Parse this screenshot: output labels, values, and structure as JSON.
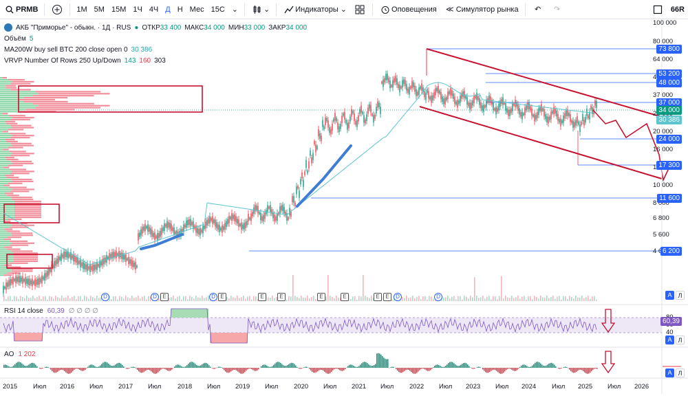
{
  "toolbar": {
    "symbol": "PRMB",
    "intervals": [
      "1М",
      "5М",
      "15М",
      "1Ч",
      "4Ч",
      "Д",
      "Н",
      "Мес",
      "15С"
    ],
    "active_interval": "Д",
    "indicators_label": "Индикаторы",
    "alerts_label": "Оповещения",
    "replay_label": "Симулятор рынка",
    "right_label": "66R"
  },
  "legend": {
    "title": "АКБ \"Приморье\" - обыкн. · 1Д · RUS",
    "open_label": "ОТКР",
    "open": "33 400",
    "high_label": "МАКС",
    "high": "34 000",
    "low_label": "МИН",
    "low": "33 000",
    "close_label": "ЗАКР",
    "close": "34 000",
    "volume_label": "Объём",
    "volume": "5",
    "ma_label": "MA200W buy sell BTC 200 close open 0",
    "ma_value": "30 386",
    "vrvp_label": "VRVP Number Of Rows 250 Up/Down",
    "vrvp_up": "143",
    "vrvp_down": "160",
    "vrvp_total": "303"
  },
  "price_axis": [
    "100 000",
    "80 000",
    "64 000",
    "48 000",
    "37 000",
    "26 000",
    "20 000",
    "16 000",
    "13 000",
    "10 000",
    "8 000",
    "6 800",
    "5 600",
    "4 600"
  ],
  "price_tags": [
    {
      "label": "73 800",
      "color": "#2962ff"
    },
    {
      "label": "53 200",
      "color": "#2962ff"
    },
    {
      "label": "48 000",
      "color": "#2962ff"
    },
    {
      "label": "37 000",
      "color": "#2962ff"
    },
    {
      "label": "34 000",
      "color": "#089981"
    },
    {
      "label": "30 386",
      "color": "#5ec4cf"
    },
    {
      "label": "24 000",
      "color": "#2962ff"
    },
    {
      "label": "17 300",
      "color": "#2962ff"
    },
    {
      "label": "11 600",
      "color": "#2962ff"
    },
    {
      "label": "6 200",
      "color": "#2962ff"
    }
  ],
  "time_axis": [
    "2015",
    "Июл",
    "2016",
    "Июл",
    "2017",
    "Июл",
    "2018",
    "Июл",
    "2019",
    "Июл",
    "2020",
    "Июл",
    "2021",
    "Июл",
    "2022",
    "Июл",
    "2023",
    "Июл",
    "2024",
    "Июл",
    "2025",
    "Июл",
    "2026"
  ],
  "rsi": {
    "label": "RSI 14 close",
    "value": "60,39",
    "extras": "∅ ∅ ∅ ∅",
    "axis": [
      "80",
      "60",
      "40"
    ],
    "tag": "60,39"
  },
  "ao": {
    "label": "AO",
    "value": "1 202"
  },
  "scale_buttons": {
    "auto": "A",
    "log": "Л"
  },
  "events": [
    {
      "t": "D"
    },
    {
      "t": "D"
    },
    {
      "t": "E"
    },
    {
      "t": "D"
    },
    {
      "t": "E"
    },
    {
      "t": "E"
    },
    {
      "t": "E"
    },
    {
      "t": "E"
    },
    {
      "t": "E"
    },
    {
      "t": "E"
    },
    {
      "t": "E"
    },
    {
      "t": "D"
    },
    {
      "t": "D"
    }
  ]
}
